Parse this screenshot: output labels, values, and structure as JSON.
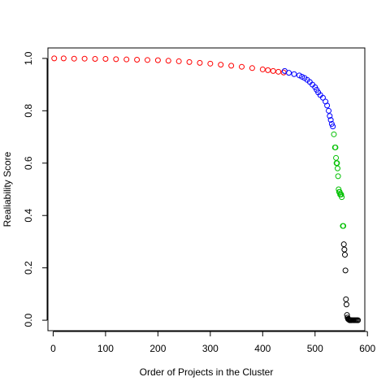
{
  "chart_data": {
    "type": "scatter",
    "title": "",
    "xlabel": "Order of Projects in the Cluster",
    "ylabel": "Realiability Score",
    "xlim": [
      -10,
      595
    ],
    "ylim": [
      -0.04,
      1.04
    ],
    "xticks": [
      0,
      100,
      200,
      300,
      400,
      500,
      600
    ],
    "yticks": [
      0.0,
      0.2,
      0.4,
      0.6,
      0.8,
      1.0
    ],
    "xtick_labels": [
      "0",
      "100",
      "200",
      "300",
      "400",
      "500",
      "600"
    ],
    "ytick_labels": [
      "0.0",
      "0.2",
      "0.4",
      "0.6",
      "0.8",
      "1.0"
    ],
    "grid": false,
    "legend": "none",
    "marker": "open circle",
    "series": [
      {
        "color": "#ff0000",
        "x": [
          2,
          20,
          40,
          60,
          80,
          100,
          120,
          140,
          160,
          180,
          200,
          220,
          240,
          260,
          280,
          300,
          320,
          340,
          360,
          380,
          400,
          410,
          420,
          430,
          440
        ],
        "y": [
          1.0,
          1.0,
          0.999,
          0.999,
          0.998,
          0.998,
          0.997,
          0.996,
          0.995,
          0.994,
          0.993,
          0.991,
          0.989,
          0.986,
          0.983,
          0.98,
          0.976,
          0.972,
          0.968,
          0.963,
          0.958,
          0.955,
          0.952,
          0.949,
          0.946
        ]
      },
      {
        "color": "#0000ff",
        "x": [
          442,
          450,
          460,
          470,
          475,
          480,
          485,
          490,
          495,
          500,
          503,
          506,
          510,
          515,
          520,
          523,
          526,
          528,
          530,
          532,
          534
        ],
        "y": [
          0.952,
          0.945,
          0.94,
          0.935,
          0.93,
          0.925,
          0.918,
          0.91,
          0.9,
          0.89,
          0.88,
          0.87,
          0.86,
          0.85,
          0.835,
          0.82,
          0.8,
          0.78,
          0.765,
          0.75,
          0.74
        ]
      },
      {
        "color": "#00c000",
        "x": [
          536,
          538,
          539,
          540,
          541,
          542,
          543,
          544,
          545,
          546,
          547,
          548,
          549,
          550,
          551,
          553,
          554
        ],
        "y": [
          0.71,
          0.66,
          0.66,
          0.62,
          0.6,
          0.6,
          0.58,
          0.55,
          0.5,
          0.49,
          0.49,
          0.48,
          0.48,
          0.48,
          0.47,
          0.36,
          0.36
        ]
      },
      {
        "color": "#000000",
        "x": [
          555,
          556,
          557,
          558,
          559,
          560,
          561,
          562,
          563,
          564,
          565,
          566,
          567,
          568,
          569,
          570,
          572,
          574,
          576,
          578,
          580,
          582
        ],
        "y": [
          0.29,
          0.27,
          0.25,
          0.19,
          0.08,
          0.06,
          0.02,
          0.01,
          0.005,
          0.003,
          0.002,
          0.0,
          0.0,
          0.0,
          0.0,
          0.0,
          0.0,
          0.0,
          0.0,
          0.0,
          0.0,
          0.0
        ]
      }
    ]
  }
}
